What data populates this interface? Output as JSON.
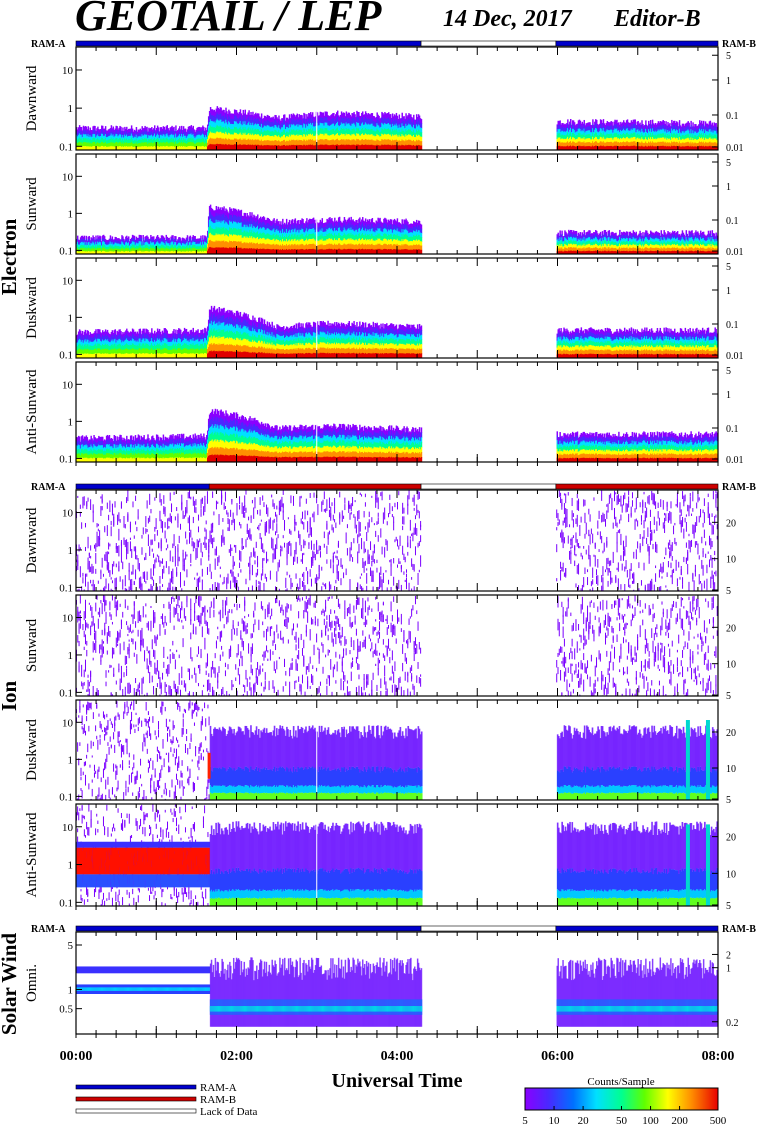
{
  "header": {
    "title": "GEOTAIL / LEP",
    "date": "14 Dec, 2017",
    "editor": "Editor-B"
  },
  "colors": {
    "ram_a": "#0000cc",
    "ram_b": "#cc0000",
    "lack_of_data": "#ffffff",
    "colorbar": [
      "#7a00ff",
      "#3030ff",
      "#00a0ff",
      "#00ffff",
      "#00ff80",
      "#40ff00",
      "#ffff00",
      "#ffa000",
      "#ff3000",
      "#e00000"
    ]
  },
  "ram_labels": {
    "left": "RAM-A",
    "right": "RAM-B"
  },
  "groups": {
    "electron": "Electron",
    "ion": "Ion",
    "solar_wind": "Solar Wind"
  },
  "x_axis": {
    "title": "Universal Time",
    "ticks": [
      "00:00",
      "02:00",
      "04:00",
      "06:00",
      "08:00"
    ]
  },
  "legend": {
    "ram_a": "RAM-A",
    "ram_b": "RAM-B",
    "lack": "Lack of Data",
    "colorbar_title": "Counts/Sample",
    "colorbar_ticks": [
      "5",
      "10",
      "20",
      "50",
      "100",
      "200",
      "500"
    ]
  },
  "chart_data": [
    {
      "type": "heatmap",
      "group": "Electron",
      "ylabel": "Dawnward",
      "yticks_left": [
        "10",
        "1",
        "0.1"
      ],
      "yticks_right": [
        "5",
        "1",
        "0.1",
        "0.01"
      ],
      "x_range_hours": [
        0,
        8
      ],
      "data_gap_hours": [
        4.3,
        5.98
      ],
      "ram_bar": [
        [
          "RAM-A",
          0,
          4.3
        ],
        [
          "none",
          4.3,
          5.98
        ],
        [
          "RAM-A",
          5.98,
          8
        ]
      ],
      "level_hours": [
        0,
        1.63,
        1.66,
        2.5,
        3.2,
        4.3,
        5.98,
        8
      ],
      "level_values": [
        0.3,
        0.3,
        1.0,
        0.55,
        0.75,
        0.6,
        0.45,
        0.4
      ]
    },
    {
      "type": "heatmap",
      "group": "Electron",
      "ylabel": "Sunward",
      "yticks_left": [
        "10",
        "1",
        "0.1"
      ],
      "yticks_right": [
        "5",
        "1",
        "0.1",
        "0.01"
      ],
      "x_range_hours": [
        0,
        8
      ],
      "data_gap_hours": [
        4.3,
        5.98
      ],
      "level_hours": [
        0,
        1.63,
        1.66,
        2.5,
        3.2,
        4.3,
        5.98,
        8
      ],
      "level_values": [
        0.22,
        0.22,
        1.5,
        0.6,
        0.7,
        0.6,
        0.3,
        0.3
      ]
    },
    {
      "type": "heatmap",
      "group": "Electron",
      "ylabel": "Duskward",
      "yticks_left": [
        "10",
        "1",
        "0.1"
      ],
      "yticks_right": [
        "5",
        "1",
        "0.1",
        "0.01"
      ],
      "x_range_hours": [
        0,
        8
      ],
      "data_gap_hours": [
        4.3,
        5.98
      ],
      "level_hours": [
        0,
        1.63,
        1.66,
        2.5,
        3.2,
        4.3,
        5.98,
        8
      ],
      "level_values": [
        0.4,
        0.45,
        1.8,
        0.55,
        0.7,
        0.55,
        0.45,
        0.45
      ]
    },
    {
      "type": "heatmap",
      "group": "Electron",
      "ylabel": "Anti-Sunward",
      "yticks_left": [
        "10",
        "1",
        "0.1"
      ],
      "yticks_right": [
        "5",
        "1",
        "0.1",
        "0.01"
      ],
      "x_range_hours": [
        0,
        8
      ],
      "data_gap_hours": [
        4.3,
        5.98
      ],
      "level_hours": [
        0,
        1.63,
        1.66,
        2.5,
        3.2,
        4.3,
        5.98,
        8
      ],
      "level_values": [
        0.35,
        0.4,
        2.0,
        0.65,
        0.75,
        0.6,
        0.45,
        0.45
      ]
    },
    {
      "type": "heatmap",
      "group": "Ion",
      "ylabel": "Dawnward",
      "yticks_left": [
        "10",
        "1",
        "0.1"
      ],
      "yticks_right": [
        "20",
        "10",
        "5"
      ],
      "x_range_hours": [
        0,
        8
      ],
      "data_gap_hours": [
        4.3,
        5.98
      ],
      "ram_bar": [
        [
          "RAM-A",
          0,
          1.66
        ],
        [
          "RAM-B",
          1.66,
          4.3
        ],
        [
          "none",
          4.3,
          5.98
        ],
        [
          "RAM-B",
          5.98,
          8
        ]
      ],
      "pattern": "sparse"
    },
    {
      "type": "heatmap",
      "group": "Ion",
      "ylabel": "Sunward",
      "yticks_left": [
        "10",
        "1",
        "0.1"
      ],
      "yticks_right": [
        "20",
        "10",
        "5"
      ],
      "x_range_hours": [
        0,
        8
      ],
      "data_gap_hours": [
        4.3,
        5.98
      ],
      "pattern": "sparse"
    },
    {
      "type": "heatmap",
      "group": "Ion",
      "ylabel": "Duskward",
      "yticks_left": [
        "10",
        "1",
        "0.1"
      ],
      "yticks_right": [
        "20",
        "10",
        "5"
      ],
      "x_range_hours": [
        0,
        8
      ],
      "data_gap_hours": [
        4.3,
        5.98
      ],
      "pattern": "dense_after_1.66h"
    },
    {
      "type": "heatmap",
      "group": "Ion",
      "ylabel": "Anti-Sunward",
      "yticks_left": [
        "10",
        "1",
        "0.1"
      ],
      "yticks_right": [
        "20",
        "10",
        "5"
      ],
      "x_range_hours": [
        0,
        8
      ],
      "data_gap_hours": [
        4.3,
        5.98
      ],
      "pattern": "red_band_0_to_1.66h_then_dense"
    },
    {
      "type": "heatmap",
      "group": "Solar Wind",
      "ylabel": "Omni.",
      "yticks_left": [
        "5",
        "1",
        "0.5"
      ],
      "yticks_right": [
        "2",
        "1",
        "0.2"
      ],
      "x_range_hours": [
        0,
        8
      ],
      "data_gap_hours": [
        4.3,
        5.98
      ],
      "ram_bar": [
        [
          "RAM-A",
          0,
          4.3
        ],
        [
          "none",
          4.3,
          5.98
        ],
        [
          "RAM-A",
          5.98,
          8
        ]
      ],
      "pattern": "two_bands_then_broad"
    }
  ]
}
